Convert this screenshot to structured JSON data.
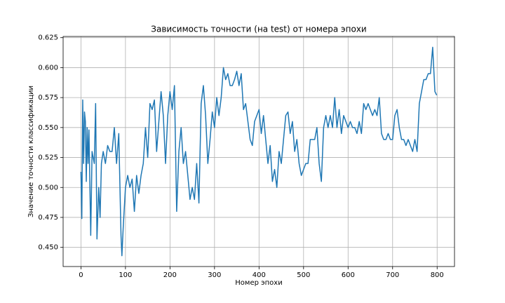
{
  "chart_data": {
    "type": "line",
    "title": "Зависимость точности (на test) от номера эпохи",
    "xlabel": "Номер эпохи",
    "ylabel": "Значение точности классификации",
    "color": "#1f77b4",
    "grid": true,
    "xlim": [
      -40,
      839
    ],
    "ylim": [
      0.434,
      0.626
    ],
    "xticks": [
      0,
      100,
      200,
      300,
      400,
      500,
      600,
      700,
      800
    ],
    "yticks": [
      {
        "value": 0.45,
        "label": "0.450"
      },
      0.475,
      {
        "value": 0.5,
        "label": "0.500"
      },
      0.525,
      {
        "value": 0.55,
        "label": "0.550"
      },
      0.575,
      {
        "value": 0.6,
        "label": "0.600"
      },
      0.625
    ],
    "x": [
      0,
      2,
      4,
      6,
      8,
      10,
      12,
      14,
      16,
      18,
      22,
      25,
      30,
      33,
      36,
      40,
      43,
      46,
      50,
      55,
      60,
      65,
      70,
      75,
      80,
      85,
      90,
      92,
      95,
      100,
      105,
      110,
      115,
      120,
      125,
      130,
      135,
      140,
      145,
      150,
      155,
      160,
      165,
      170,
      175,
      180,
      185,
      190,
      195,
      200,
      205,
      210,
      215,
      220,
      225,
      230,
      235,
      240,
      245,
      250,
      255,
      260,
      265,
      270,
      275,
      280,
      285,
      290,
      295,
      300,
      305,
      310,
      315,
      320,
      325,
      330,
      335,
      340,
      345,
      350,
      355,
      360,
      365,
      370,
      375,
      380,
      385,
      390,
      395,
      400,
      405,
      410,
      415,
      420,
      425,
      430,
      435,
      440,
      445,
      450,
      455,
      460,
      465,
      470,
      475,
      480,
      485,
      490,
      495,
      500,
      505,
      510,
      515,
      520,
      525,
      530,
      535,
      540,
      545,
      550,
      555,
      560,
      565,
      570,
      575,
      580,
      585,
      590,
      595,
      600,
      605,
      610,
      615,
      620,
      625,
      630,
      635,
      640,
      645,
      650,
      655,
      660,
      665,
      670,
      675,
      680,
      685,
      690,
      695,
      700,
      705,
      710,
      715,
      720,
      725,
      730,
      735,
      740,
      745,
      750,
      755,
      760,
      765,
      770,
      775,
      780,
      785,
      790,
      795,
      799
    ],
    "values": [
      0.513,
      0.474,
      0.573,
      0.52,
      0.563,
      0.555,
      0.505,
      0.55,
      0.52,
      0.548,
      0.46,
      0.53,
      0.52,
      0.57,
      0.457,
      0.5,
      0.475,
      0.52,
      0.53,
      0.52,
      0.535,
      0.53,
      0.53,
      0.55,
      0.52,
      0.545,
      0.46,
      0.443,
      0.467,
      0.5,
      0.51,
      0.5,
      0.507,
      0.48,
      0.51,
      0.495,
      0.51,
      0.52,
      0.55,
      0.525,
      0.57,
      0.565,
      0.573,
      0.53,
      0.555,
      0.58,
      0.56,
      0.52,
      0.56,
      0.58,
      0.565,
      0.585,
      0.48,
      0.53,
      0.55,
      0.52,
      0.53,
      0.51,
      0.49,
      0.5,
      0.49,
      0.52,
      0.487,
      0.57,
      0.585,
      0.56,
      0.52,
      0.54,
      0.563,
      0.55,
      0.575,
      0.56,
      0.575,
      0.6,
      0.59,
      0.595,
      0.585,
      0.585,
      0.59,
      0.597,
      0.585,
      0.595,
      0.565,
      0.57,
      0.555,
      0.54,
      0.535,
      0.555,
      0.56,
      0.565,
      0.545,
      0.56,
      0.54,
      0.52,
      0.535,
      0.505,
      0.515,
      0.5,
      0.53,
      0.52,
      0.54,
      0.56,
      0.563,
      0.545,
      0.555,
      0.53,
      0.54,
      0.52,
      0.51,
      0.515,
      0.52,
      0.52,
      0.54,
      0.54,
      0.54,
      0.55,
      0.52,
      0.505,
      0.55,
      0.56,
      0.55,
      0.56,
      0.55,
      0.575,
      0.55,
      0.565,
      0.545,
      0.56,
      0.555,
      0.55,
      0.555,
      0.55,
      0.55,
      0.545,
      0.555,
      0.545,
      0.57,
      0.565,
      0.57,
      0.565,
      0.56,
      0.565,
      0.56,
      0.575,
      0.545,
      0.54,
      0.54,
      0.545,
      0.54,
      0.54,
      0.56,
      0.565,
      0.55,
      0.54,
      0.54,
      0.535,
      0.54,
      0.535,
      0.53,
      0.54,
      0.53,
      0.57,
      0.58,
      0.59,
      0.59,
      0.595,
      0.595,
      0.617,
      0.58,
      0.577
    ]
  }
}
